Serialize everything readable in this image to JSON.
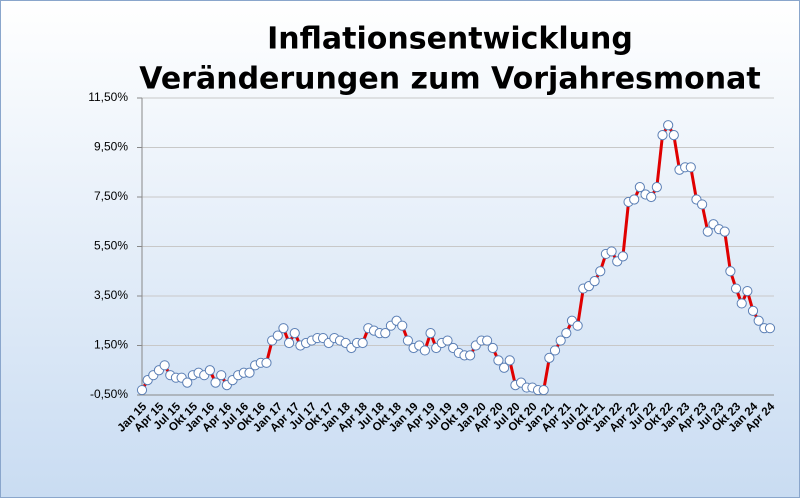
{
  "chart_data": {
    "type": "line",
    "title": "Inflationsentwicklung",
    "subtitle": "Veränderungen zum Vorjahresmonat",
    "categories": [
      "Jan 15",
      null,
      null,
      "Apr 15",
      null,
      null,
      "Jul 15",
      null,
      null,
      "Okt 15",
      null,
      null,
      "Jan 16",
      null,
      null,
      "Apr 16",
      null,
      null,
      "Jul 16",
      null,
      null,
      "Okt 16",
      null,
      null,
      "Jan 17",
      null,
      null,
      "Apr 17",
      null,
      null,
      "Jul 17",
      null,
      null,
      "Okt 17",
      null,
      null,
      "Jan 18",
      null,
      null,
      "Apr 18",
      null,
      null,
      "Jul 18",
      null,
      null,
      "Okt 18",
      null,
      null,
      "Jan 19",
      null,
      null,
      "Apr 19",
      null,
      null,
      "Jul 19",
      null,
      null,
      "Okt 19",
      null,
      null,
      "Jan 20",
      null,
      null,
      "Apr 20",
      null,
      null,
      "Jul 20",
      null,
      null,
      "Okt 20",
      null,
      null,
      "Jan 21",
      null,
      null,
      "Apr 21",
      null,
      null,
      "Jul 21",
      null,
      null,
      "Okt 21",
      null,
      null,
      "Jan 22",
      null,
      null,
      "Apr 22",
      null,
      null,
      "Jul 22",
      null,
      null,
      "Okt 22",
      null,
      null,
      "Jan 23",
      null,
      null,
      "Apr 23",
      null,
      null,
      "Jul 23",
      null,
      null,
      "Okt 23",
      null,
      null,
      "Jan 24",
      null,
      null,
      "Apr 24"
    ],
    "series": [
      {
        "color": "#e00000",
        "marker_color": "#5b7fb5",
        "values": [
          -0.3,
          0.1,
          0.3,
          0.5,
          0.7,
          0.3,
          0.2,
          0.2,
          0.0,
          0.3,
          0.4,
          0.3,
          0.5,
          0.0,
          0.3,
          -0.1,
          0.1,
          0.3,
          0.4,
          0.4,
          0.7,
          0.8,
          0.8,
          1.7,
          1.9,
          2.2,
          1.6,
          2.0,
          1.5,
          1.6,
          1.7,
          1.8,
          1.8,
          1.6,
          1.8,
          1.7,
          1.6,
          1.4,
          1.6,
          1.6,
          2.2,
          2.1,
          2.0,
          2.0,
          2.3,
          2.5,
          2.3,
          1.7,
          1.4,
          1.5,
          1.3,
          2.0,
          1.4,
          1.6,
          1.7,
          1.4,
          1.2,
          1.1,
          1.1,
          1.5,
          1.7,
          1.7,
          1.4,
          0.9,
          0.6,
          0.9,
          -0.1,
          0.0,
          -0.2,
          -0.2,
          -0.3,
          -0.3,
          1.0,
          1.3,
          1.7,
          2.0,
          2.5,
          2.3,
          3.8,
          3.9,
          4.1,
          4.5,
          5.2,
          5.3,
          4.9,
          5.1,
          7.3,
          7.4,
          7.9,
          7.6,
          7.5,
          7.9,
          10.0,
          10.4,
          10.0,
          8.6,
          8.7,
          8.7,
          7.4,
          7.2,
          6.1,
          6.4,
          6.2,
          6.1,
          4.5,
          3.8,
          3.2,
          3.7,
          2.9,
          2.5,
          2.2,
          2.2
        ]
      }
    ],
    "ylim": [
      -0.5,
      11.5
    ],
    "yticks": [
      {
        "value": -0.5,
        "label": "-0,50%"
      },
      {
        "value": 1.5,
        "label": "1,50%"
      },
      {
        "value": 3.5,
        "label": "3,50%"
      },
      {
        "value": 5.5,
        "label": "5,50%"
      },
      {
        "value": 7.5,
        "label": "7,50%"
      },
      {
        "value": 9.5,
        "label": "9,50%"
      },
      {
        "value": 11.5,
        "label": "11,50%"
      }
    ],
    "grid": true
  }
}
